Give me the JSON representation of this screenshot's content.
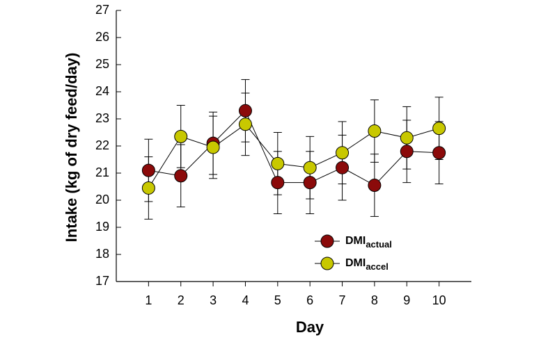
{
  "chart_data": {
    "type": "line",
    "x_label": "Day",
    "y_label": "Intake (kg of dry feed/day)",
    "x": [
      1,
      2,
      3,
      4,
      5,
      6,
      7,
      8,
      9,
      10
    ],
    "xlim": [
      0,
      11
    ],
    "xticks": [
      1,
      2,
      3,
      4,
      5,
      6,
      7,
      8,
      9,
      10
    ],
    "ylim": [
      17,
      27
    ],
    "yticks": [
      17,
      18,
      19,
      20,
      21,
      22,
      23,
      24,
      25,
      26,
      27
    ],
    "series": [
      {
        "name": "DMIactual",
        "color": "#8b0a0a",
        "values": [
          21.1,
          20.9,
          22.1,
          23.3,
          20.65,
          20.65,
          21.2,
          20.55,
          21.8,
          21.75
        ],
        "errors": [
          1.15,
          1.15,
          1.15,
          1.15,
          1.15,
          1.15,
          1.2,
          1.15,
          1.15,
          1.15
        ]
      },
      {
        "name": "DMIaccel",
        "color": "#c8c800",
        "values": [
          20.45,
          22.35,
          21.95,
          22.8,
          21.35,
          21.2,
          21.75,
          22.55,
          22.3,
          22.65
        ],
        "errors": [
          1.15,
          1.15,
          1.15,
          1.15,
          1.15,
          1.15,
          1.15,
          1.15,
          1.15,
          1.15
        ]
      }
    ]
  }
}
